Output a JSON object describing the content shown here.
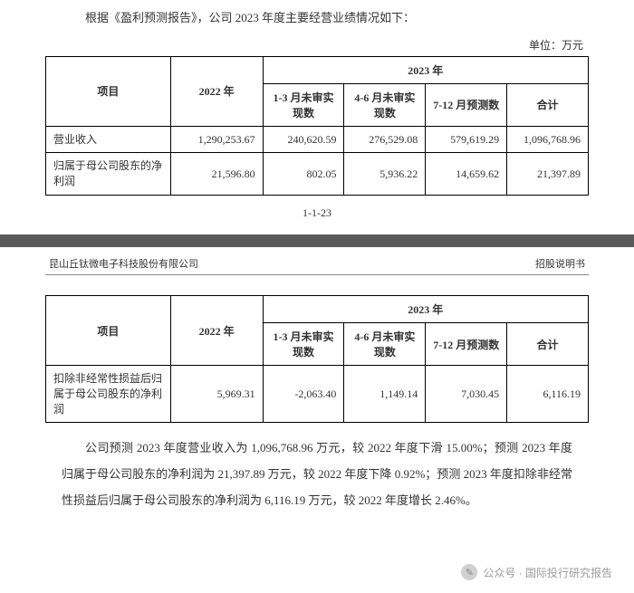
{
  "page1": {
    "intro": "根据《盈利预测报告》，公司 2023 年度主要经营业绩情况如下：",
    "unit": "单位：万元",
    "headers": {
      "item": "项目",
      "year2022": "2022 年",
      "year2023": "2023 年",
      "sub1": "1-3 月未审实现数",
      "sub2": "4-6 月未审实现数",
      "sub3": "7-12 月预测数",
      "total": "合计"
    },
    "rows": [
      {
        "label": "营业收入",
        "y2022": "1,290,253.67",
        "s1": "240,620.59",
        "s2": "276,529.08",
        "s3": "579,619.29",
        "total": "1,096,768.96"
      },
      {
        "label": "归属于母公司股东的净利润",
        "y2022": "21,596.80",
        "s1": "802.05",
        "s2": "5,936.22",
        "s3": "14,659.62",
        "total": "21,397.89"
      }
    ],
    "pagenum": "1-1-23"
  },
  "page2": {
    "header_left": "昆山丘钛微电子科技股份有限公司",
    "header_right": "招股说明书",
    "headers": {
      "item": "项目",
      "year2022": "2022 年",
      "year2023": "2023 年",
      "sub1": "1-3 月未审实现数",
      "sub2": "4-6 月未审实现数",
      "sub3": "7-12 月预测数",
      "total": "合计"
    },
    "rows": [
      {
        "label": "扣除非经常性损益后归属于母公司股东的净利润",
        "y2022": "5,969.31",
        "s1": "-2,063.40",
        "s2": "1,149.14",
        "s3": "7,030.45",
        "total": "6,116.19"
      }
    ],
    "body": "公司预测 2023 年度营业收入为 1,096,768.96 万元，较 2022 年度下滑 15.00%；预测 2023 年度归属于母公司股东的净利润为 21,397.89 万元，较 2022 年度下降 0.92%；预测 2023 年度扣除非经常性损益后归属于母公司股东的净利润为 6,116.19 万元，较 2022 年度增长 2.46%。"
  },
  "watermark": {
    "text": "公众号 · 国际投行研究报告"
  },
  "style": {
    "border_color": "#000000",
    "text_color": "#333333",
    "gap_color": "#5a5a5a",
    "watermark_color": "#9b9b9b",
    "font_size_base": 13,
    "font_size_table": 12
  }
}
